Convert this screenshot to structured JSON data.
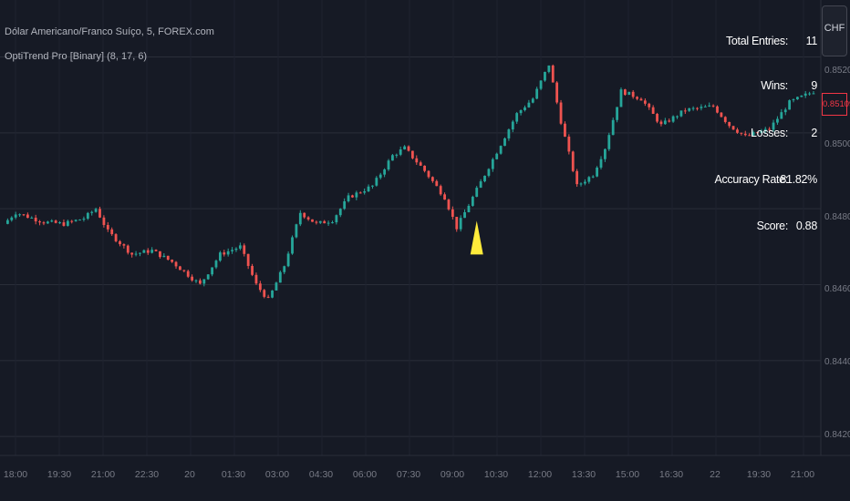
{
  "header": {
    "symbol": "Dólar Americano/Franco Suíço, 5, FOREX.com",
    "indicator": "OptiTrend Pro [Binary] (8, 17, 6)"
  },
  "stats": [
    {
      "label": "Total Entries:",
      "value": "11"
    },
    {
      "label": "Wins:",
      "value": "9"
    },
    {
      "label": "Losses:",
      "value": "2"
    },
    {
      "label": "Accuracy Rate:",
      "value": "81.82%"
    },
    {
      "label": "Score:",
      "value": "0.88"
    }
  ],
  "currency_button": "CHF",
  "current_price": "0.85109",
  "colors": {
    "background": "#161a25",
    "up": "#26a69a",
    "down": "#ef5350",
    "signal": "#ffeb3b",
    "grid": "#2a2e39"
  },
  "chart_data": {
    "type": "candlestick",
    "ylim": [
      0.8415,
      0.8535
    ],
    "y_ticks": [
      "0.85200",
      "0.85000",
      "0.84800",
      "0.84600",
      "0.84400",
      "0.84200"
    ],
    "x_ticks": [
      "18:00",
      "19:30",
      "21:00",
      "22:30",
      "20",
      "01:30",
      "03:00",
      "04:30",
      "06:00",
      "07:30",
      "09:00",
      "10:30",
      "12:00",
      "13:30",
      "15:00",
      "16:30",
      "22",
      "19:30",
      "21:00"
    ],
    "close_path": [
      {
        "t": 0,
        "price": 0.8476
      },
      {
        "t": 3,
        "price": 0.8479
      },
      {
        "t": 10,
        "price": 0.84765
      },
      {
        "t": 15,
        "price": 0.8476
      },
      {
        "t": 20,
        "price": 0.84775
      },
      {
        "t": 23,
        "price": 0.848
      },
      {
        "t": 26,
        "price": 0.8474
      },
      {
        "t": 32,
        "price": 0.8468
      },
      {
        "t": 37,
        "price": 0.8469
      },
      {
        "t": 42,
        "price": 0.8466
      },
      {
        "t": 49,
        "price": 0.846
      },
      {
        "t": 54,
        "price": 0.8468
      },
      {
        "t": 59,
        "price": 0.847
      },
      {
        "t": 63,
        "price": 0.846
      },
      {
        "t": 66,
        "price": 0.8456
      },
      {
        "t": 70,
        "price": 0.8465
      },
      {
        "t": 74,
        "price": 0.8479
      },
      {
        "t": 78,
        "price": 0.8476
      },
      {
        "t": 82,
        "price": 0.8477
      },
      {
        "t": 86,
        "price": 0.8483
      },
      {
        "t": 92,
        "price": 0.8486
      },
      {
        "t": 97,
        "price": 0.8494
      },
      {
        "t": 100,
        "price": 0.8496
      },
      {
        "t": 105,
        "price": 0.849
      },
      {
        "t": 110,
        "price": 0.8483
      },
      {
        "t": 113,
        "price": 0.8475
      },
      {
        "t": 117,
        "price": 0.8483
      },
      {
        "t": 124,
        "price": 0.8497
      },
      {
        "t": 128,
        "price": 0.8505
      },
      {
        "t": 132,
        "price": 0.8509
      },
      {
        "t": 136,
        "price": 0.8518
      },
      {
        "t": 139,
        "price": 0.8503
      },
      {
        "t": 143,
        "price": 0.8486
      },
      {
        "t": 147,
        "price": 0.8489
      },
      {
        "t": 150,
        "price": 0.8496
      },
      {
        "t": 154,
        "price": 0.8511
      },
      {
        "t": 159,
        "price": 0.8509
      },
      {
        "t": 164,
        "price": 0.8502
      },
      {
        "t": 170,
        "price": 0.8506
      },
      {
        "t": 177,
        "price": 0.8507
      },
      {
        "t": 181,
        "price": 0.8502
      },
      {
        "t": 185,
        "price": 0.8499
      },
      {
        "t": 191,
        "price": 0.8501
      },
      {
        "t": 196,
        "price": 0.8508
      },
      {
        "t": 202,
        "price": 0.85109
      }
    ],
    "signals": [
      {
        "type": "buy-arrow",
        "t": 118
      }
    ]
  }
}
